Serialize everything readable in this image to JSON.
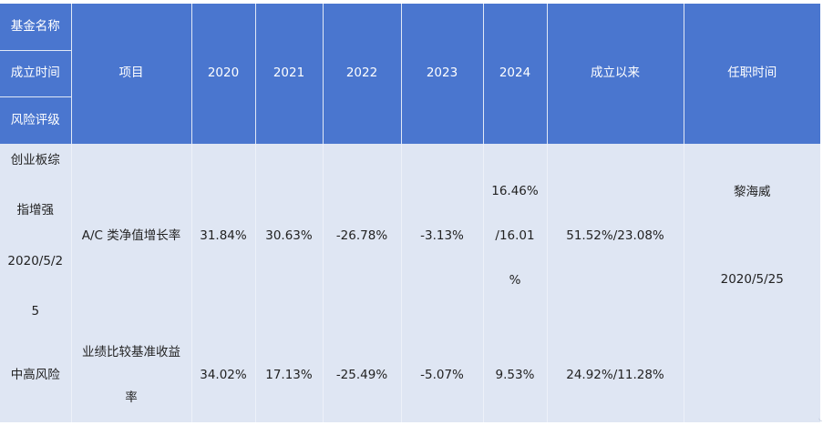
{
  "header": {
    "fund_name": "基金名称",
    "inception_date": "成立时间",
    "risk_rating": "风险评级",
    "item": "项目",
    "years": [
      "2020",
      "2021",
      "2022",
      "2023",
      "2024"
    ],
    "since_inception": "成立以来",
    "tenure": "任职时间"
  },
  "fund": {
    "name_lines": [
      "创业板综",
      "指增强",
      "2020/5/2",
      "5"
    ],
    "risk": "中高风险",
    "manager": "黎海威",
    "tenure_date": "2020/5/25"
  },
  "rows": [
    {
      "label": "A/C 类净值增长率",
      "v2020": "31.84%",
      "v2021": "30.63%",
      "v2022": "-26.78%",
      "v2023": "-3.13%",
      "v2024_lines": [
        "16.46%",
        "/16.01",
        "%"
      ],
      "since": "51.52%/23.08%"
    },
    {
      "label_lines": [
        "业绩比较基准收益",
        "率"
      ],
      "v2020": "34.02%",
      "v2021": "17.13%",
      "v2022": "-25.49%",
      "v2023": "-5.07%",
      "v2024": "9.53%",
      "since": "24.92%/11.28%"
    }
  ]
}
